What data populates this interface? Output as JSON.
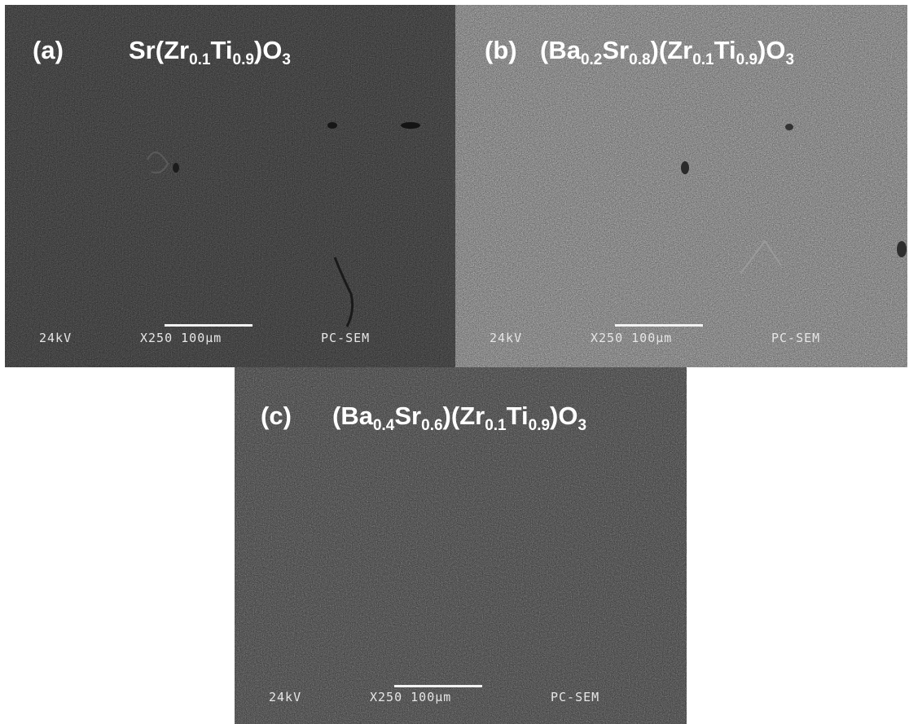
{
  "panels": [
    {
      "label": "(a)",
      "formula": {
        "el1": "Sr(Zr",
        "s1": "0.1",
        "el2": "Ti",
        "s2": "0.9",
        "el3": ")O",
        "s3": "3"
      },
      "meta": {
        "voltage": "24kV",
        "magnification": "X250",
        "scale": "100μm",
        "mode": "PC-SEM"
      },
      "brightness": "dark"
    },
    {
      "label": "(b)",
      "formula": {
        "el1": "(Ba",
        "s1": "0.2",
        "el2": "Sr",
        "s2": "0.8",
        "el3": ")(Zr",
        "s3": "0.1",
        "el4": "Ti",
        "s4": "0.9",
        "el5": ")O",
        "s5": "3"
      },
      "meta": {
        "voltage": "24kV",
        "magnification": "X250",
        "scale": "100μm",
        "mode": "PC-SEM"
      },
      "brightness": "light"
    },
    {
      "label": "(c)",
      "formula": {
        "el1": "(Ba",
        "s1": "0.4",
        "el2": "Sr",
        "s2": "0.6",
        "el3": ")(Zr",
        "s3": "0.1",
        "el4": "Ti",
        "s4": "0.9",
        "el5": ")O",
        "s5": "3"
      },
      "meta": {
        "voltage": "24kV",
        "magnification": "X250",
        "scale": "100μm",
        "mode": "PC-SEM"
      },
      "brightness": "medium"
    }
  ],
  "colors": {
    "background": "#ffffff",
    "text": "#ffffff",
    "panel_a": "#2f2f2f",
    "panel_b": "#6a6a6a",
    "panel_c": "#3d3d3d"
  }
}
